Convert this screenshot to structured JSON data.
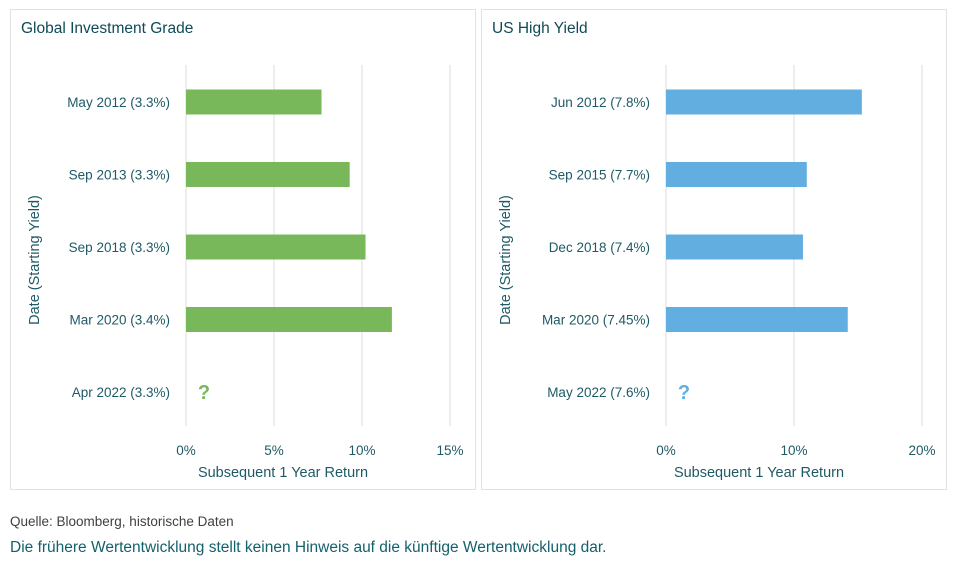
{
  "chart_data": [
    {
      "type": "bar",
      "orientation": "horizontal",
      "title": "Global Investment Grade",
      "xlabel": "Subsequent 1 Year Return",
      "ylabel": "Date (Starting Yield)",
      "categories": [
        "May 2012 (3.3%)",
        "Sep 2013 (3.3%)",
        "Sep 2018 (3.3%)",
        "Mar 2020 (3.4%)",
        "Apr 2022 (3.3%)"
      ],
      "values": [
        7.7,
        9.3,
        10.2,
        11.7,
        null
      ],
      "unknown_marker": "?",
      "xlim": [
        0,
        15
      ],
      "xticks": [
        0,
        5,
        10,
        15
      ],
      "xtick_labels": [
        "0%",
        "5%",
        "10%",
        "15%"
      ],
      "grid": true,
      "color": "#79b85a"
    },
    {
      "type": "bar",
      "orientation": "horizontal",
      "title": "US High Yield",
      "xlabel": "Subsequent 1 Year Return",
      "ylabel": "Date (Starting Yield)",
      "categories": [
        "Jun 2012 (7.8%)",
        "Sep 2015 (7.7%)",
        "Dec 2018 (7.4%)",
        "Mar 2020 (7.45%)",
        "May 2022 (7.6%)"
      ],
      "values": [
        15.3,
        11.0,
        10.7,
        14.2,
        null
      ],
      "unknown_marker": "?",
      "xlim": [
        0,
        20
      ],
      "xticks": [
        0,
        10,
        20
      ],
      "xtick_labels": [
        "0%",
        "10%",
        "20%"
      ],
      "grid": true,
      "color": "#62aee0"
    }
  ],
  "footer": {
    "source": "Quelle: Bloomberg, historische Daten",
    "disclaimer": "Die frühere Wertentwicklung stellt keinen Hinweis auf die künftige Wertentwicklung dar."
  }
}
